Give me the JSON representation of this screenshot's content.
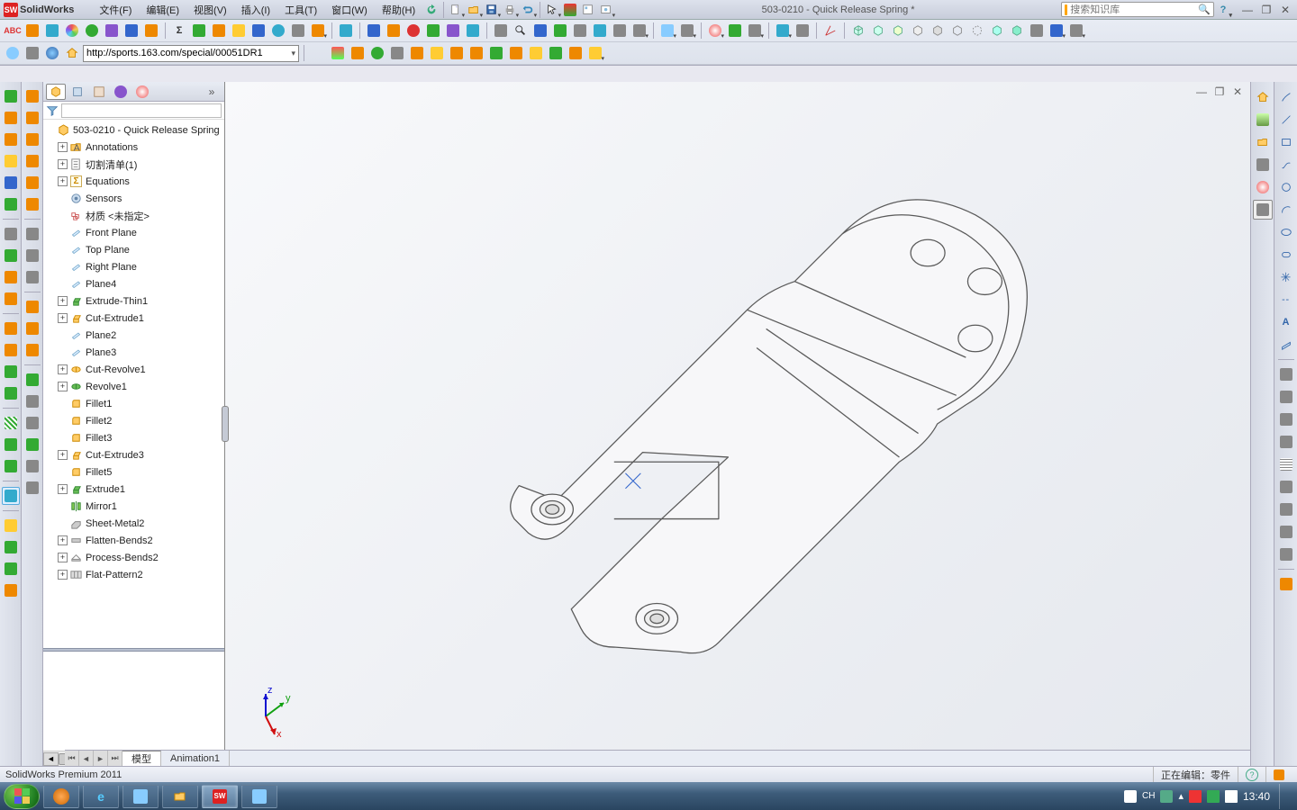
{
  "app": {
    "brand": "SolidWorks",
    "doc_title": "503-0210 - Quick Release Spring *",
    "search_placeholder": "搜索知识库"
  },
  "menu": [
    "文件(F)",
    "编辑(E)",
    "视图(V)",
    "插入(I)",
    "工具(T)",
    "窗口(W)",
    "帮助(H)"
  ],
  "urlbar": "http://sports.163.com/special/00051DR1",
  "tree": {
    "root": "503-0210 - Quick Release Spring",
    "items": [
      {
        "exp": "+",
        "icon": "folder-a",
        "label": "Annotations",
        "depth": 1
      },
      {
        "exp": "+",
        "icon": "cut-list",
        "label": "切割清单(1)",
        "depth": 1
      },
      {
        "exp": "+",
        "icon": "sigma",
        "label": "Equations",
        "depth": 1
      },
      {
        "exp": "",
        "icon": "sensor",
        "label": "Sensors",
        "depth": 1
      },
      {
        "exp": "",
        "icon": "material",
        "label": "材质 <未指定>",
        "depth": 1
      },
      {
        "exp": "",
        "icon": "plane",
        "label": "Front Plane",
        "depth": 1
      },
      {
        "exp": "",
        "icon": "plane",
        "label": "Top Plane",
        "depth": 1
      },
      {
        "exp": "",
        "icon": "plane",
        "label": "Right Plane",
        "depth": 1
      },
      {
        "exp": "",
        "icon": "plane",
        "label": "Plane4",
        "depth": 1
      },
      {
        "exp": "+",
        "icon": "extrude",
        "label": "Extrude-Thin1",
        "depth": 1
      },
      {
        "exp": "+",
        "icon": "cut",
        "label": "Cut-Extrude1",
        "depth": 1
      },
      {
        "exp": "",
        "icon": "plane",
        "label": "Plane2",
        "depth": 1
      },
      {
        "exp": "",
        "icon": "plane",
        "label": "Plane3",
        "depth": 1
      },
      {
        "exp": "+",
        "icon": "cutrev",
        "label": "Cut-Revolve1",
        "depth": 1
      },
      {
        "exp": "+",
        "icon": "revolve",
        "label": "Revolve1",
        "depth": 1
      },
      {
        "exp": "",
        "icon": "fillet",
        "label": "Fillet1",
        "depth": 1
      },
      {
        "exp": "",
        "icon": "fillet",
        "label": "Fillet2",
        "depth": 1
      },
      {
        "exp": "",
        "icon": "fillet",
        "label": "Fillet3",
        "depth": 1
      },
      {
        "exp": "+",
        "icon": "cut",
        "label": "Cut-Extrude3",
        "depth": 1
      },
      {
        "exp": "",
        "icon": "fillet",
        "label": "Fillet5",
        "depth": 1
      },
      {
        "exp": "+",
        "icon": "extrude",
        "label": "Extrude1",
        "depth": 1
      },
      {
        "exp": "",
        "icon": "mirror",
        "label": "Mirror1",
        "depth": 1
      },
      {
        "exp": "",
        "icon": "sheet",
        "label": "Sheet-Metal2",
        "depth": 1,
        "dim": true
      },
      {
        "exp": "+",
        "icon": "flatten",
        "label": "Flatten-Bends2",
        "depth": 1,
        "dim": true
      },
      {
        "exp": "+",
        "icon": "process",
        "label": "Process-Bends2",
        "depth": 1,
        "dim": true
      },
      {
        "exp": "+",
        "icon": "flatpat",
        "label": "Flat-Pattern2",
        "depth": 1,
        "dim": true
      }
    ]
  },
  "view_tabs": {
    "active": "模型",
    "other": "Animation1"
  },
  "status": {
    "left": "SolidWorks Premium 2011",
    "right": "正在编辑：零件"
  },
  "taskbar": {
    "clock": "13:40"
  },
  "colors": {
    "viewport_bg_top": "#f8f9fb",
    "viewport_bg_bot": "#e5e8ee",
    "part_stroke": "#4a4a4a",
    "part_fill": "#f5f5f7",
    "triad_x": "#d01010",
    "triad_y": "#10a010",
    "triad_z": "#1010d0"
  }
}
